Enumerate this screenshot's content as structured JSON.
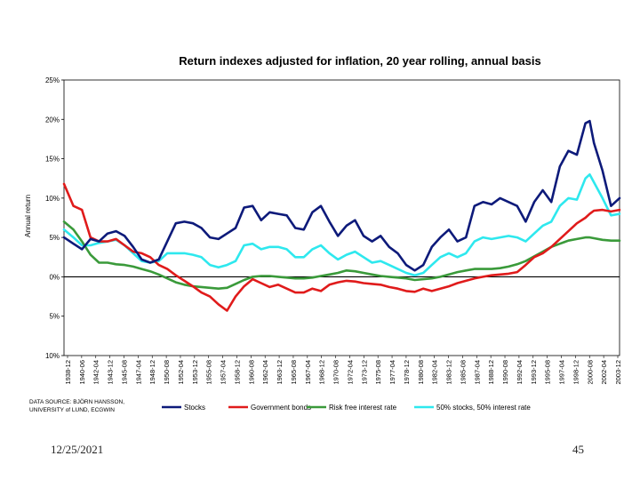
{
  "footer": {
    "date": "12/25/2021",
    "page": "45"
  },
  "source_note": [
    "DATA SOURCE: BJÖRN HANSSON,",
    "UNIVERSITY of LUND, ECGWIN"
  ],
  "colors": {
    "stocks": "#0d1a7a",
    "government_bonds": "#e01b1b",
    "risk_free": "#3a9a3a",
    "mix_50_50": "#2ee8ee",
    "zero_line": "#000000"
  },
  "chart_data": {
    "type": "line",
    "title": "Return indexes adjusted for inflation, 20 year rolling, annual basis",
    "ylabel": "Annual return",
    "xlabel": "",
    "ylim": [
      -10,
      25
    ],
    "yticks": [
      25,
      20,
      15,
      10,
      5,
      0,
      -5,
      -10
    ],
    "ytick_labels": [
      "25%",
      "20%",
      "15%",
      "10%",
      "5%",
      "0%",
      "5%",
      "10%"
    ],
    "x_labels": [
      "1938-12",
      "1940-06",
      "1942-04",
      "1943-12",
      "1945-08",
      "1947-04",
      "1948-12",
      "1950-08",
      "1952-04",
      "1953-12",
      "1955-08",
      "1957-04",
      "1958-12",
      "1960-08",
      "1962-04",
      "1963-12",
      "1965-08",
      "1967-04",
      "1968-12",
      "1970-08",
      "1972-04",
      "1973-12",
      "1975-08",
      "1977-04",
      "1978-12",
      "1980-08",
      "1982-04",
      "1983-12",
      "1985-08",
      "1987-04",
      "1988-12",
      "1990-08",
      "1992-04",
      "1993-12",
      "1995-08",
      "1997-04",
      "1998-12",
      "2000-08",
      "2002-04",
      "2003-12"
    ],
    "x": [
      1938.9,
      1940.0,
      1941.0,
      1942.0,
      1943.0,
      1944.0,
      1945.0,
      1946.0,
      1947.0,
      1948.0,
      1949.0,
      1950.0,
      1951.0,
      1952.0,
      1953.0,
      1954.0,
      1955.0,
      1956.0,
      1957.0,
      1958.0,
      1959.0,
      1960.0,
      1961.0,
      1962.0,
      1963.0,
      1964.0,
      1965.0,
      1966.0,
      1967.0,
      1968.0,
      1969.0,
      1970.0,
      1971.0,
      1972.0,
      1973.0,
      1974.0,
      1975.0,
      1976.0,
      1977.0,
      1978.0,
      1979.0,
      1980.0,
      1981.0,
      1982.0,
      1983.0,
      1984.0,
      1985.0,
      1986.0,
      1987.0,
      1988.0,
      1989.0,
      1990.0,
      1991.0,
      1992.0,
      1993.0,
      1994.0,
      1995.0,
      1996.0,
      1997.0,
      1998.0,
      1999.0,
      2000.0,
      2000.5,
      2001.0,
      2002.0,
      2003.0,
      2004.0
    ],
    "series": [
      {
        "name": "Stocks",
        "color_key": "stocks",
        "values": [
          5.0,
          4.2,
          3.5,
          4.8,
          4.5,
          5.5,
          5.8,
          5.2,
          3.8,
          2.2,
          1.8,
          2.2,
          4.5,
          6.8,
          7.0,
          6.8,
          6.2,
          5.0,
          4.8,
          5.5,
          6.2,
          8.8,
          9.0,
          7.2,
          8.2,
          8.0,
          7.8,
          6.2,
          6.0,
          8.2,
          9.0,
          7.0,
          5.2,
          6.5,
          7.2,
          5.2,
          4.5,
          5.2,
          3.8,
          3.0,
          1.5,
          0.8,
          1.5,
          3.8,
          5.0,
          6.0,
          4.5,
          5.0,
          9.0,
          9.5,
          9.2,
          10.0,
          9.5,
          9.0,
          7.0,
          9.5,
          11.0,
          9.5,
          14.0,
          16.0,
          15.5,
          19.5,
          19.8,
          17.0,
          13.5,
          9.0,
          10.0
        ]
      },
      {
        "name": "Government bonds",
        "color_key": "government_bonds",
        "values": [
          11.8,
          9.0,
          8.5,
          5.0,
          4.5,
          4.5,
          4.8,
          4.0,
          3.2,
          3.0,
          2.5,
          1.5,
          1.0,
          0.2,
          -0.5,
          -1.2,
          -2.0,
          -2.5,
          -3.5,
          -4.3,
          -2.5,
          -1.2,
          -0.3,
          -0.8,
          -1.3,
          -1.0,
          -1.5,
          -2.0,
          -2.0,
          -1.5,
          -1.8,
          -1.0,
          -0.7,
          -0.5,
          -0.6,
          -0.8,
          -0.9,
          -1.0,
          -1.3,
          -1.5,
          -1.8,
          -1.9,
          -1.5,
          -1.8,
          -1.5,
          -1.2,
          -0.8,
          -0.5,
          -0.2,
          0.0,
          0.2,
          0.3,
          0.4,
          0.6,
          1.5,
          2.5,
          3.0,
          3.8,
          4.8,
          5.8,
          6.8,
          7.5,
          8.0,
          8.4,
          8.5,
          8.3,
          8.5
        ]
      },
      {
        "name": "Risk free interest rate",
        "color_key": "risk_free",
        "values": [
          7.0,
          6.0,
          4.5,
          2.8,
          1.8,
          1.8,
          1.6,
          1.5,
          1.3,
          1.0,
          0.7,
          0.3,
          -0.2,
          -0.7,
          -1.0,
          -1.2,
          -1.3,
          -1.4,
          -1.5,
          -1.4,
          -0.9,
          -0.4,
          0.0,
          0.1,
          0.1,
          0.0,
          -0.1,
          -0.2,
          -0.2,
          -0.1,
          0.1,
          0.3,
          0.5,
          0.8,
          0.7,
          0.5,
          0.3,
          0.1,
          0.0,
          -0.1,
          -0.2,
          -0.4,
          -0.3,
          -0.2,
          0.0,
          0.3,
          0.6,
          0.8,
          1.0,
          1.0,
          1.0,
          1.1,
          1.3,
          1.6,
          2.0,
          2.6,
          3.2,
          3.8,
          4.2,
          4.6,
          4.8,
          5.0,
          5.0,
          4.9,
          4.7,
          4.6,
          4.6
        ]
      },
      {
        "name": "50% stocks, 50% interest rate",
        "color_key": "mix_50_50",
        "values": [
          6.0,
          5.0,
          4.0,
          4.0,
          4.3,
          4.5,
          4.7,
          4.0,
          3.0,
          2.0,
          1.8,
          2.0,
          3.0,
          3.0,
          3.0,
          2.8,
          2.5,
          1.5,
          1.2,
          1.5,
          2.0,
          4.0,
          4.2,
          3.5,
          3.8,
          3.8,
          3.5,
          2.5,
          2.5,
          3.5,
          4.0,
          3.0,
          2.2,
          2.8,
          3.2,
          2.5,
          1.8,
          2.0,
          1.5,
          1.0,
          0.5,
          0.2,
          0.5,
          1.5,
          2.5,
          3.0,
          2.5,
          3.0,
          4.5,
          5.0,
          4.8,
          5.0,
          5.2,
          5.0,
          4.5,
          5.5,
          6.5,
          7.0,
          9.0,
          10.0,
          9.8,
          12.5,
          13.0,
          12.0,
          10.0,
          7.8,
          8.0
        ]
      }
    ],
    "legend_position": "bottom"
  }
}
